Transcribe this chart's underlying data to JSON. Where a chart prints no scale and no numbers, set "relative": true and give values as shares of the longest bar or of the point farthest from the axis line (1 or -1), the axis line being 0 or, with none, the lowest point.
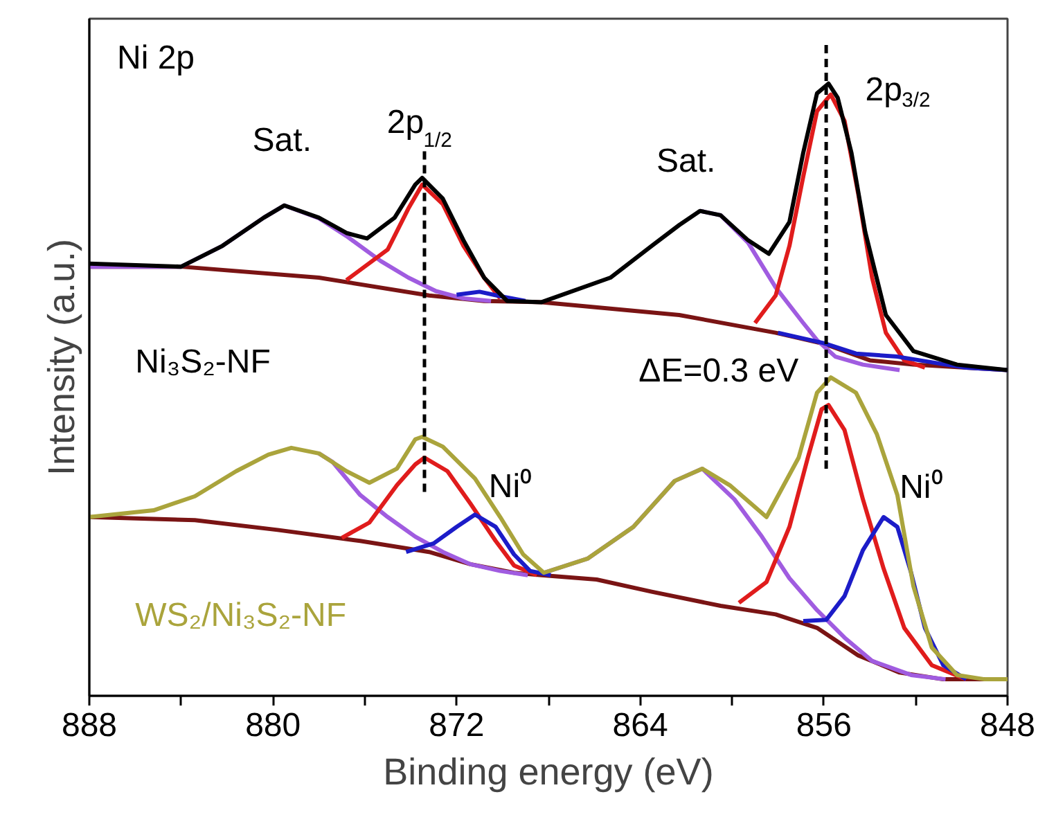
{
  "chart_data": {
    "type": "line",
    "relative": true,
    "xlabel": "Binding energy (eV)",
    "ylabel": "Intensity (a.u.)",
    "xlim": [
      888,
      848
    ],
    "xticks": [
      888,
      {
        "value": 884,
        "label": null
      },
      880,
      {
        "value": 876,
        "label": null
      },
      872,
      {
        "value": 868,
        "label": null
      },
      864,
      {
        "value": 860,
        "label": null
      },
      856,
      {
        "value": 852,
        "label": null
      },
      848
    ],
    "grid": false,
    "line_style": "solid",
    "marker": "none",
    "series": [
      {
        "color": "#7a1414",
        "x": [
          888,
          884,
          878,
          873.2,
          870.8,
          868.3,
          862.3,
          858.1,
          856,
          854,
          852.1,
          848
        ],
        "values": [
          0.701,
          0.701,
          0.683,
          0.654,
          0.645,
          0.643,
          0.622,
          0.593,
          0.575,
          0.548,
          0.541,
          0.532
        ]
      },
      {
        "color": "#a05ce0",
        "x": [
          888,
          884,
          882.2,
          880.4,
          879.5,
          878,
          876.8,
          875.3,
          874.1,
          872.9,
          871.7,
          870.5
        ],
        "values": [
          0.701,
          0.701,
          0.735,
          0.781,
          0.801,
          0.78,
          0.751,
          0.71,
          0.683,
          0.661,
          0.649,
          0.645
        ]
      },
      {
        "color": "#a05ce0",
        "x": [
          861.4,
          860.5,
          859.3,
          858.1,
          856.9,
          856.3,
          855.5,
          854.3,
          852.7
        ],
        "values": [
          0.792,
          0.785,
          0.74,
          0.667,
          0.609,
          0.581,
          0.554,
          0.541,
          0.532
        ]
      },
      {
        "color": "#e01c1c",
        "x": [
          876.8,
          875,
          874.1,
          873.5,
          872.6,
          871.7,
          870.8,
          870.1
        ],
        "values": [
          0.679,
          0.729,
          0.796,
          0.835,
          0.803,
          0.735,
          0.683,
          0.649
        ]
      },
      {
        "color": "#e01c1c",
        "x": [
          859,
          858.1,
          857.5,
          856.9,
          856.3,
          855.7,
          855.1,
          854.5,
          853.9,
          853.3,
          852.5,
          851.6
        ],
        "values": [
          0.609,
          0.654,
          0.735,
          0.848,
          0.955,
          0.982,
          0.939,
          0.819,
          0.683,
          0.593,
          0.548,
          0.536
        ]
      },
      {
        "color": "#1c1cc8",
        "x": [
          872,
          871,
          870,
          869
        ],
        "values": [
          0.655,
          0.66,
          0.652,
          0.645
        ]
      },
      {
        "color": "#1c1cc8",
        "x": [
          858,
          856,
          854.6,
          852.8,
          851,
          849.8,
          848
        ],
        "values": [
          0.593,
          0.576,
          0.559,
          0.554,
          0.543,
          0.536,
          0.532
        ]
      },
      {
        "name": "Ni₃S₂-NF",
        "color": "#000000",
        "x": [
          888,
          884,
          882.2,
          880.4,
          879.5,
          878,
          876.8,
          875.9,
          874.7,
          873.8,
          873.5,
          872.6,
          871.7,
          870.8,
          869.8,
          868.3,
          865.3,
          863.5,
          862.3,
          861.4,
          860.5,
          859.3,
          858.4,
          857.5,
          856.9,
          856.3,
          855.8,
          855.4,
          854.8,
          854.2,
          853.3,
          852.1,
          850.2,
          848
        ],
        "values": [
          0.706,
          0.701,
          0.735,
          0.781,
          0.801,
          0.781,
          0.756,
          0.747,
          0.781,
          0.835,
          0.846,
          0.812,
          0.744,
          0.683,
          0.645,
          0.643,
          0.683,
          0.735,
          0.769,
          0.792,
          0.785,
          0.744,
          0.722,
          0.774,
          0.887,
          0.984,
          1.0,
          0.977,
          0.887,
          0.758,
          0.622,
          0.563,
          0.541,
          0.532
        ]
      },
      {
        "color": "#7a1414",
        "x": [
          888,
          883.4,
          879.8,
          876.2,
          873.2,
          871.4,
          869.5,
          868.3,
          865.9,
          863.5,
          860.5,
          858.1,
          856.3,
          854.5,
          852.7,
          850.8,
          848
        ],
        "values": [
          0.292,
          0.287,
          0.271,
          0.253,
          0.235,
          0.215,
          0.201,
          0.197,
          0.19,
          0.17,
          0.147,
          0.133,
          0.111,
          0.066,
          0.038,
          0.027,
          0.027
        ]
      },
      {
        "color": "#a05ce0",
        "x": [
          878,
          877.4,
          876.2,
          875,
          873.8,
          872.6,
          871.4,
          870.1,
          868.9
        ],
        "values": [
          0.396,
          0.382,
          0.328,
          0.292,
          0.26,
          0.235,
          0.215,
          0.204,
          0.197
        ]
      },
      {
        "color": "#a05ce0",
        "x": [
          868.2,
          866.3,
          864.3,
          862.5,
          861.3,
          859.9,
          858.7,
          857.5,
          856.3,
          855.1,
          853.9,
          852.2,
          850.7
        ],
        "values": [
          0.201,
          0.224,
          0.276,
          0.351,
          0.371,
          0.321,
          0.26,
          0.192,
          0.14,
          0.095,
          0.057,
          0.034,
          0.027
        ]
      },
      {
        "color": "#e01c1c",
        "x": [
          877,
          875.8,
          874.6,
          873.8,
          873.4,
          872.4,
          871.4,
          870.3,
          869.5,
          868.5
        ],
        "values": [
          0.258,
          0.283,
          0.344,
          0.378,
          0.389,
          0.367,
          0.314,
          0.253,
          0.213,
          0.197
        ]
      },
      {
        "color": "#e01c1c",
        "x": [
          859.7,
          858.5,
          857.5,
          856.7,
          856.1,
          855.8,
          855.1,
          854.3,
          853.4,
          852.5,
          851.3,
          849.8
        ],
        "values": [
          0.152,
          0.186,
          0.276,
          0.389,
          0.468,
          0.475,
          0.434,
          0.321,
          0.208,
          0.111,
          0.05,
          0.027
        ]
      },
      {
        "color": "#1c1cc8",
        "x": [
          874.2,
          873,
          872,
          871.2,
          870.3,
          869.5,
          868.8,
          867.9
        ],
        "values": [
          0.235,
          0.249,
          0.276,
          0.296,
          0.276,
          0.231,
          0.204,
          0.197
        ]
      },
      {
        "color": "#1c1cc8",
        "x": [
          856.9,
          855.9,
          855.1,
          854.3,
          853.4,
          852.8,
          852.2,
          851.6,
          850.8,
          849.8
        ],
        "values": [
          0.122,
          0.124,
          0.163,
          0.238,
          0.292,
          0.276,
          0.201,
          0.111,
          0.05,
          0.027
        ]
      },
      {
        "name": "WS₂/Ni₃S₂-NF",
        "color": "#aaa43c",
        "x": [
          888,
          885.2,
          883.4,
          881.6,
          880.2,
          879.2,
          878,
          876.8,
          875.8,
          874.6,
          873.8,
          873.5,
          872.6,
          871.2,
          870.1,
          869.1,
          868.2,
          866.3,
          864.3,
          862.5,
          861.3,
          860.1,
          858.5,
          857.1,
          856.3,
          855.7,
          854.6,
          853.7,
          852.8,
          852.1,
          851.3,
          850.2,
          849,
          848
        ],
        "values": [
          0.292,
          0.303,
          0.326,
          0.367,
          0.394,
          0.405,
          0.396,
          0.367,
          0.348,
          0.371,
          0.419,
          0.423,
          0.407,
          0.355,
          0.292,
          0.231,
          0.201,
          0.224,
          0.276,
          0.351,
          0.371,
          0.344,
          0.292,
          0.389,
          0.495,
          0.52,
          0.495,
          0.428,
          0.328,
          0.179,
          0.079,
          0.034,
          0.027,
          0.027
        ]
      }
    ],
    "ref_lines": [
      {
        "axis": "x",
        "value": 873.4,
        "color": "#000000",
        "line_style": "dashed"
      },
      {
        "axis": "x",
        "value": 855.9,
        "color": "#000000",
        "line_style": "dashed"
      }
    ],
    "annotations": [
      "Ni 2p",
      {
        "text": "Sat.",
        "x": 879.5,
        "y": 0.801
      },
      {
        "text": "2p$_{1/2}$",
        "x": 873.5,
        "y": 0.846
      },
      {
        "text": "Sat.",
        "x": 861.4,
        "y": 0.792
      },
      {
        "text": "2p$_{3/2}$",
        "x": 855.8,
        "y": 1.0
      },
      {
        "text": "ΔE=0.3 eV",
        "x": 855.9,
        "y": 0.53
      },
      {
        "text": "Ni⁰",
        "x": 871.2,
        "y": 0.296
      },
      {
        "text": "Ni⁰",
        "x": 853.4,
        "y": 0.292
      }
    ]
  }
}
